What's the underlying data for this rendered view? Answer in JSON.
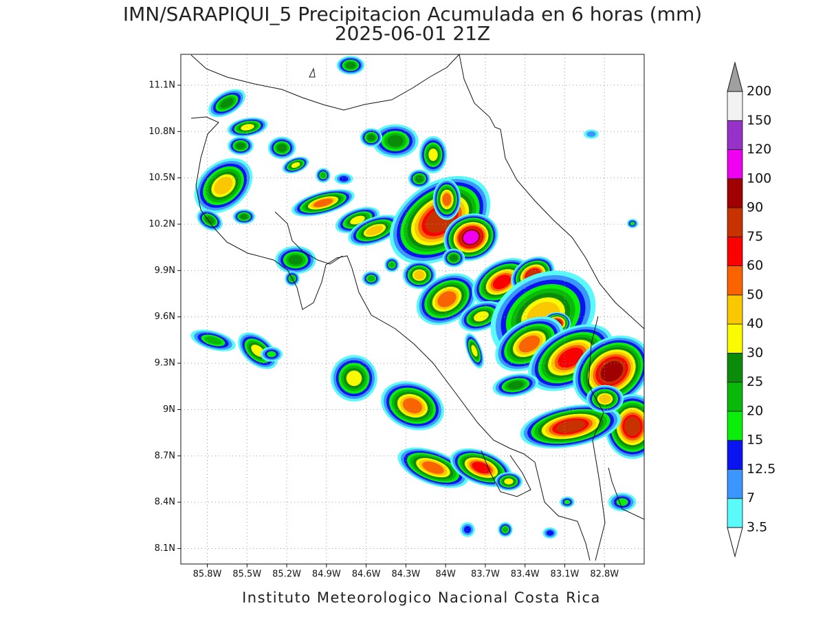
{
  "title": "IMN/SARAPIQUI_5 Precipitacion Acumulada en 6 horas (mm)",
  "subtitle": "2025-06-01 21Z",
  "credit": "Instituto Meteorologico Nacional Costa Rica",
  "map": {
    "xlim": [
      -86.0,
      -82.5
    ],
    "ylim": [
      8.0,
      11.3
    ],
    "xticks": [
      {
        "value": -85.8,
        "label": "85.8W"
      },
      {
        "value": -85.5,
        "label": "85.5W"
      },
      {
        "value": -85.2,
        "label": "85.2W"
      },
      {
        "value": -84.9,
        "label": "84.9W"
      },
      {
        "value": -84.6,
        "label": "84.6W"
      },
      {
        "value": -84.3,
        "label": "84.3W"
      },
      {
        "value": -84.0,
        "label": "84W"
      },
      {
        "value": -83.7,
        "label": "83.7W"
      },
      {
        "value": -83.4,
        "label": "83.4W"
      },
      {
        "value": -83.1,
        "label": "83.1W"
      },
      {
        "value": -82.8,
        "label": "82.8W"
      }
    ],
    "yticks": [
      {
        "value": 8.1,
        "label": "8.1N"
      },
      {
        "value": 8.4,
        "label": "8.4N"
      },
      {
        "value": 8.7,
        "label": "8.7N"
      },
      {
        "value": 9.0,
        "label": "9N"
      },
      {
        "value": 9.3,
        "label": "9.3N"
      },
      {
        "value": 9.6,
        "label": "9.6N"
      },
      {
        "value": 9.9,
        "label": "9.9N"
      },
      {
        "value": 10.2,
        "label": "10.2N"
      },
      {
        "value": 10.5,
        "label": "10.5N"
      },
      {
        "value": 10.8,
        "label": "10.8N"
      },
      {
        "value": 11.1,
        "label": "11.1N"
      }
    ],
    "grid": true
  },
  "colorbar": {
    "levels": [
      3.5,
      7,
      12.5,
      15,
      20,
      25,
      30,
      40,
      50,
      60,
      75,
      90,
      100,
      120,
      150,
      200
    ],
    "colors": [
      "#5afafa",
      "#3c96ff",
      "#0a14f0",
      "#0aee0a",
      "#0ab80a",
      "#0a8c0a",
      "#fafa00",
      "#fac800",
      "#fa6400",
      "#fa0000",
      "#c83200",
      "#a00000",
      "#f000f0",
      "#9632c8",
      "#f2f2f2"
    ],
    "under_color": "#ffffff",
    "over_color": "#a0a0a0"
  }
}
